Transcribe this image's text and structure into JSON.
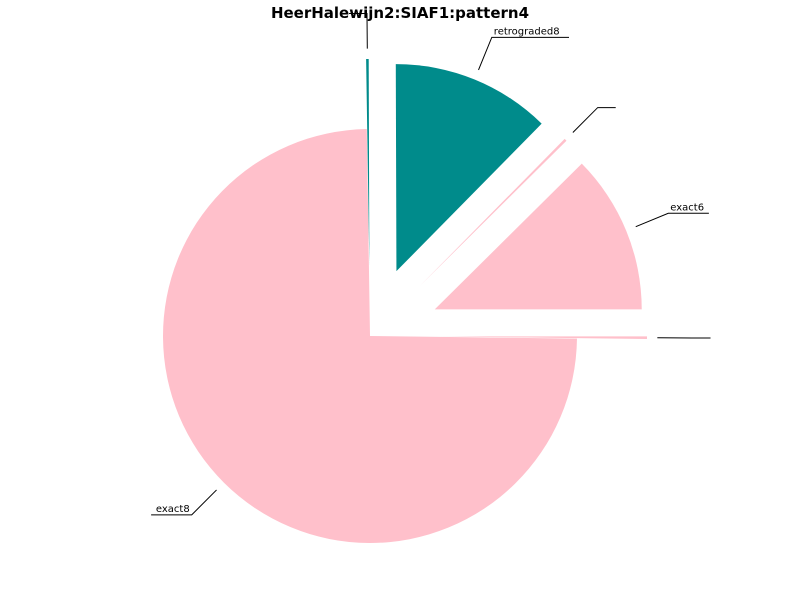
{
  "chart_data": {
    "type": "pie",
    "title": "HeerHalewijn2:SIAF1:pattern4",
    "slices": [
      {
        "label": "exact6",
        "value": 12.5,
        "color": "#ffc0cb",
        "exploded": true
      },
      {
        "label": "",
        "value": 0.2,
        "color": "#ffc0cb",
        "exploded": true
      },
      {
        "label": "retrograded8",
        "value": 12.5,
        "color": "#008b8b",
        "exploded": true
      },
      {
        "label": "",
        "value": 0.2,
        "color": "#008b8b",
        "exploded": true
      },
      {
        "label": "exact8",
        "value": 75,
        "color": "#ffc0cb",
        "exploded": false
      },
      {
        "label": "",
        "value": 0.2,
        "color": "#ffc0cb",
        "exploded": true
      }
    ]
  }
}
